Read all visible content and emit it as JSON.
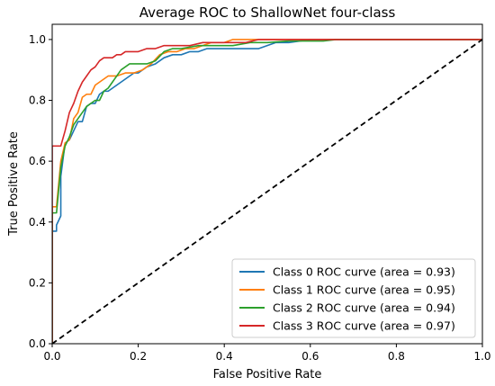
{
  "chart_data": {
    "type": "line",
    "title": "Average ROC to ShallowNet four-class",
    "xlabel": "False Positive Rate",
    "ylabel": "True Positive Rate",
    "xlim": [
      0.0,
      1.0
    ],
    "ylim": [
      0.0,
      1.05
    ],
    "xticks": [
      0.0,
      0.2,
      0.4,
      0.6,
      0.8,
      1.0
    ],
    "yticks": [
      0.0,
      0.2,
      0.4,
      0.6,
      0.8,
      1.0
    ],
    "xtick_labels": [
      "0.0",
      "0.2",
      "0.4",
      "0.6",
      "0.8",
      "1.0"
    ],
    "ytick_labels": [
      "0.0",
      "0.2",
      "0.4",
      "0.6",
      "0.8",
      "1.0"
    ],
    "grid": false,
    "legend_position": "bottom-right",
    "series": [
      {
        "name": "Class 0 ROC curve (area = 0.93)",
        "color": "#1f77b4",
        "x": [
          0.0,
          0.0,
          0.01,
          0.01,
          0.02,
          0.02,
          0.03,
          0.04,
          0.05,
          0.06,
          0.07,
          0.08,
          0.09,
          0.1,
          0.11,
          0.12,
          0.13,
          0.14,
          0.15,
          0.16,
          0.17,
          0.18,
          0.19,
          0.2,
          0.21,
          0.22,
          0.24,
          0.26,
          0.28,
          0.3,
          0.32,
          0.34,
          0.36,
          0.4,
          0.44,
          0.48,
          0.5,
          0.52,
          0.55,
          0.6,
          0.7,
          0.8,
          0.9,
          1.0
        ],
        "y": [
          0.0,
          0.37,
          0.37,
          0.39,
          0.42,
          0.55,
          0.66,
          0.67,
          0.7,
          0.73,
          0.73,
          0.78,
          0.79,
          0.79,
          0.82,
          0.83,
          0.83,
          0.84,
          0.85,
          0.86,
          0.87,
          0.88,
          0.89,
          0.89,
          0.9,
          0.91,
          0.92,
          0.94,
          0.95,
          0.95,
          0.96,
          0.96,
          0.97,
          0.97,
          0.97,
          0.97,
          0.98,
          0.99,
          0.99,
          1.0,
          1.0,
          1.0,
          1.0,
          1.0
        ]
      },
      {
        "name": "Class 1 ROC curve (area = 0.95)",
        "color": "#ff7f0e",
        "x": [
          0.0,
          0.0,
          0.01,
          0.02,
          0.03,
          0.04,
          0.05,
          0.06,
          0.07,
          0.08,
          0.09,
          0.1,
          0.11,
          0.12,
          0.13,
          0.14,
          0.15,
          0.17,
          0.19,
          0.21,
          0.23,
          0.25,
          0.27,
          0.29,
          0.31,
          0.33,
          0.35,
          0.37,
          0.4,
          0.42,
          0.45,
          0.5,
          0.6,
          0.7,
          0.8,
          0.9,
          1.0
        ],
        "y": [
          0.0,
          0.45,
          0.45,
          0.6,
          0.66,
          0.67,
          0.74,
          0.76,
          0.81,
          0.82,
          0.82,
          0.85,
          0.86,
          0.87,
          0.88,
          0.88,
          0.88,
          0.89,
          0.89,
          0.9,
          0.92,
          0.95,
          0.96,
          0.96,
          0.97,
          0.97,
          0.98,
          0.99,
          0.99,
          1.0,
          1.0,
          1.0,
          1.0,
          1.0,
          1.0,
          1.0,
          1.0
        ]
      },
      {
        "name": "Class 2 ROC curve (area = 0.94)",
        "color": "#2ca02c",
        "x": [
          0.0,
          0.0,
          0.01,
          0.02,
          0.03,
          0.04,
          0.05,
          0.06,
          0.07,
          0.08,
          0.09,
          0.1,
          0.11,
          0.12,
          0.13,
          0.14,
          0.15,
          0.16,
          0.17,
          0.18,
          0.2,
          0.22,
          0.24,
          0.26,
          0.28,
          0.3,
          0.34,
          0.38,
          0.42,
          0.46,
          0.5,
          0.55,
          0.63,
          0.66,
          0.7,
          0.8,
          0.9,
          1.0
        ],
        "y": [
          0.0,
          0.43,
          0.43,
          0.58,
          0.65,
          0.68,
          0.72,
          0.74,
          0.76,
          0.78,
          0.79,
          0.8,
          0.8,
          0.83,
          0.84,
          0.86,
          0.88,
          0.9,
          0.91,
          0.92,
          0.92,
          0.92,
          0.93,
          0.96,
          0.97,
          0.97,
          0.98,
          0.98,
          0.98,
          0.99,
          0.99,
          0.995,
          0.995,
          1.0,
          1.0,
          1.0,
          1.0,
          1.0
        ]
      },
      {
        "name": "Class 3 ROC curve (area = 0.97)",
        "color": "#d62728",
        "x": [
          0.0,
          0.0,
          0.02,
          0.03,
          0.04,
          0.05,
          0.06,
          0.07,
          0.08,
          0.09,
          0.1,
          0.11,
          0.12,
          0.13,
          0.14,
          0.15,
          0.16,
          0.17,
          0.18,
          0.2,
          0.22,
          0.24,
          0.26,
          0.28,
          0.32,
          0.35,
          0.4,
          0.45,
          0.48,
          0.5,
          0.6,
          0.7,
          0.8,
          0.9,
          1.0
        ],
        "y": [
          0.0,
          0.65,
          0.65,
          0.7,
          0.76,
          0.79,
          0.83,
          0.86,
          0.88,
          0.9,
          0.91,
          0.93,
          0.94,
          0.94,
          0.94,
          0.95,
          0.95,
          0.96,
          0.96,
          0.96,
          0.97,
          0.97,
          0.98,
          0.98,
          0.98,
          0.99,
          0.99,
          0.99,
          1.0,
          1.0,
          1.0,
          1.0,
          1.0,
          1.0,
          1.0
        ]
      }
    ],
    "reference_line": {
      "x": [
        0.0,
        1.0
      ],
      "y": [
        0.0,
        1.0
      ],
      "color": "#000000",
      "style": "dashed"
    }
  }
}
